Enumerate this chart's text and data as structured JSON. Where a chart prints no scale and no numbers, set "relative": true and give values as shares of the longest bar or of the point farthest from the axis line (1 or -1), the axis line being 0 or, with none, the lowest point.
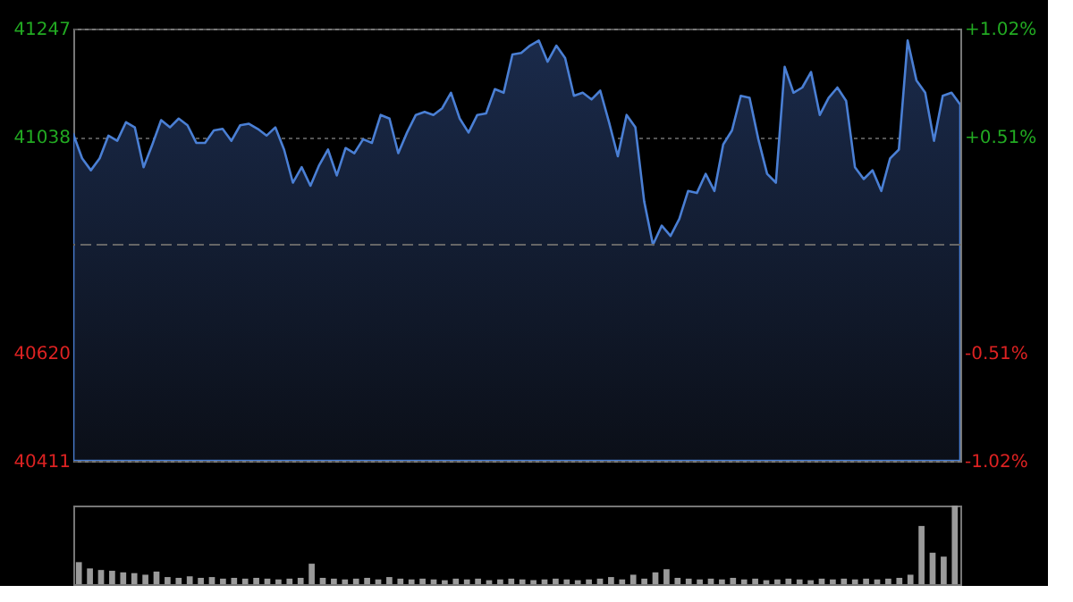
{
  "chart_data": [
    {
      "type": "area",
      "tick_labels": "y",
      "grid": "y",
      "legend": false,
      "categories": [
        null,
        null,
        null,
        null,
        null,
        null,
        null,
        null,
        null,
        null,
        null,
        null,
        null,
        null,
        null,
        null,
        null,
        null,
        null,
        null,
        null,
        null,
        null,
        null,
        null,
        null,
        null,
        null,
        null,
        null,
        null,
        null,
        null,
        null,
        null,
        null,
        null,
        null,
        null,
        null,
        null,
        null,
        null,
        null,
        null,
        null,
        null,
        null,
        null,
        null,
        null,
        null,
        null,
        null,
        null,
        null,
        null,
        null,
        null,
        null,
        null,
        null,
        null,
        null,
        null,
        null,
        null,
        null,
        null,
        null,
        null,
        null,
        null,
        null,
        null,
        null,
        null,
        null,
        null,
        null,
        null,
        null,
        null,
        null,
        null,
        null,
        null,
        null,
        null,
        null,
        null,
        null,
        null,
        null,
        null,
        null,
        null,
        null,
        null,
        null,
        null,
        null
      ],
      "series": [
        {
          "color": "#4a7fd4",
          "values": [
            41043,
            40996,
            40973,
            40996,
            41040,
            41030,
            41066,
            41056,
            40979,
            41023,
            41070,
            41056,
            41073,
            41060,
            41026,
            41026,
            41050,
            41053,
            41030,
            41060,
            41063,
            41053,
            41040,
            41056,
            41013,
            40949,
            40979,
            40943,
            40983,
            41013,
            40963,
            41016,
            41006,
            41033,
            41026,
            41080,
            41073,
            41006,
            41046,
            41080,
            41086,
            41080,
            41093,
            41123,
            41073,
            41046,
            41080,
            41083,
            41130,
            41123,
            41197,
            41200,
            41214,
            41224,
            41183,
            41214,
            41190,
            41117,
            41123,
            41110,
            41127,
            41066,
            41000,
            41080,
            41056,
            40913,
            40829,
            40866,
            40846,
            40879,
            40933,
            40929,
            40966,
            40933,
            41023,
            41050,
            41117,
            41113,
            41033,
            40966,
            40949,
            41173,
            41123,
            41133,
            41163,
            41080,
            41113,
            41133,
            41107,
            40979,
            40956,
            40973,
            40933,
            40996,
            41013,
            41224,
            41147,
            41123,
            41030,
            41117,
            41123,
            41100
          ]
        }
      ],
      "ylim": [
        40411,
        41247
      ],
      "yticks": [
        40411,
        40620,
        41038,
        41247
      ],
      "y2lim": [
        -1.02,
        1.02
      ],
      "y2ticks": [
        {
          "value": -1.02,
          "label": "-1.02%"
        },
        {
          "value": -0.51,
          "label": "-0.51%"
        },
        {
          "value": 0.51,
          "label": "+0.51%"
        },
        {
          "value": 1.02,
          "label": "+1.02%"
        }
      ],
      "ref_lines": [
        {
          "axis": "y",
          "value": 40829,
          "label": null,
          "color": "#666666",
          "line_style": "dashed"
        }
      ]
    },
    {
      "type": "bar",
      "relative": true,
      "tick_labels": false,
      "legend": false,
      "categories": [
        null,
        null,
        null,
        null,
        null,
        null,
        null,
        null,
        null,
        null,
        null,
        null,
        null,
        null,
        null,
        null,
        null,
        null,
        null,
        null,
        null,
        null,
        null,
        null,
        null,
        null,
        null,
        null,
        null,
        null,
        null,
        null,
        null,
        null,
        null,
        null,
        null,
        null,
        null,
        null,
        null,
        null,
        null,
        null,
        null,
        null,
        null,
        null,
        null,
        null,
        null,
        null,
        null,
        null,
        null,
        null,
        null,
        null,
        null,
        null,
        null,
        null,
        null,
        null,
        null,
        null,
        null,
        null,
        null,
        null,
        null,
        null,
        null,
        null,
        null,
        null,
        null,
        null,
        null,
        null
      ],
      "series": [
        {
          "color": "#9a9a9a",
          "values": [
            0.28,
            0.2,
            0.18,
            0.17,
            0.15,
            0.14,
            0.12,
            0.16,
            0.09,
            0.08,
            0.1,
            0.08,
            0.09,
            0.07,
            0.08,
            0.07,
            0.08,
            0.07,
            0.06,
            0.07,
            0.08,
            0.26,
            0.08,
            0.07,
            0.06,
            0.07,
            0.08,
            0.06,
            0.09,
            0.07,
            0.06,
            0.07,
            0.06,
            0.05,
            0.07,
            0.06,
            0.07,
            0.05,
            0.06,
            0.07,
            0.06,
            0.05,
            0.06,
            0.07,
            0.06,
            0.05,
            0.06,
            0.07,
            0.09,
            0.06,
            0.12,
            0.07,
            0.15,
            0.19,
            0.08,
            0.07,
            0.06,
            0.07,
            0.06,
            0.08,
            0.06,
            0.07,
            0.05,
            0.06,
            0.07,
            0.06,
            0.05,
            0.07,
            0.06,
            0.07,
            0.06,
            0.07,
            0.06,
            0.07,
            0.08,
            0.12,
            0.74,
            0.4,
            0.35,
            1.0
          ]
        }
      ]
    }
  ]
}
